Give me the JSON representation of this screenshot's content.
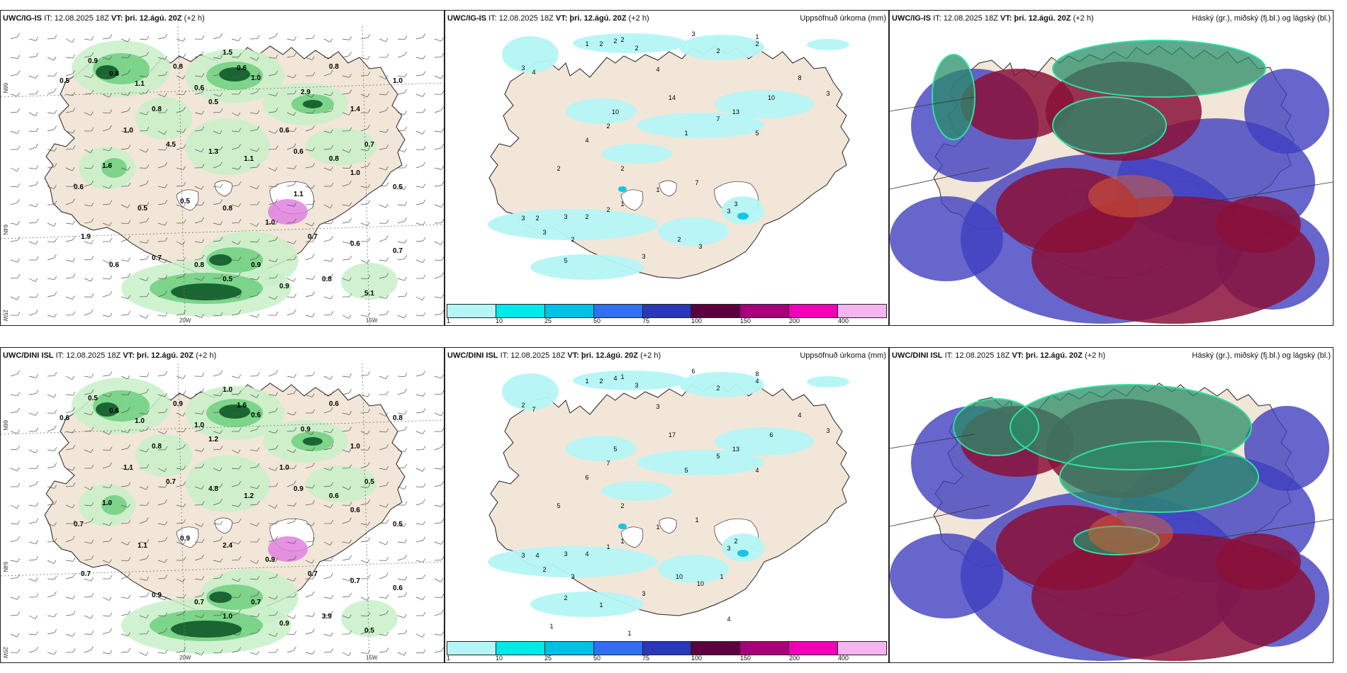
{
  "panels": [
    {
      "model": "UWC/IG-IS",
      "it": "IT: 12.08.2025 18Z",
      "vt_label": "VT:",
      "vt": "þri. 12.ágú. 20Z",
      "lead": "(+2 h)",
      "right": ""
    },
    {
      "model": "UWC/IG-IS",
      "it": "IT: 12.08.2025 18Z",
      "vt_label": "VT:",
      "vt": "þri. 12.ágú. 20Z",
      "lead": "(+2 h)",
      "right": "Uppsöfnuð úrkoma (mm)"
    },
    {
      "model": "UWC/IG-IS",
      "it": "IT: 12.08.2025 18Z",
      "vt_label": "VT:",
      "vt": "þri. 12.ágú. 20Z",
      "lead": "(+2 h)",
      "right": "Háský (gr.), miðský (fj.bl.) og lágský (bl.)"
    },
    {
      "model": "UWC/DINI ISL",
      "it": "IT: 12.08.2025 18Z",
      "vt_label": "VT:",
      "vt": "þri. 12.ágú. 20Z",
      "lead": "(+2 h)",
      "right": ""
    },
    {
      "model": "UWC/DINI ISL",
      "it": "IT: 12.08.2025 18Z",
      "vt_label": "VT:",
      "vt": "þri. 12.ágú. 20Z",
      "lead": "(+2 h)",
      "right": "Uppsöfnuð úrkoma (mm)"
    },
    {
      "model": "UWC/DINI ISL",
      "it": "IT: 12.08.2025 18Z",
      "vt_label": "VT:",
      "vt": "þri. 12.ágú. 20Z",
      "lead": "(+2 h)",
      "right": "Háský (gr.), miðský (fj.bl.) og lágský (bl.)"
    }
  ],
  "axis_labels": {
    "lat66": "66N",
    "lat64": "64N",
    "lon25": "25W",
    "lon20": "20W",
    "lon15": "15W"
  },
  "legend": {
    "labels": [
      "1",
      "10",
      "25",
      "50",
      "75",
      "100",
      "150",
      "200",
      "400",
      ""
    ],
    "colors": [
      "#b4f6f6",
      "#00e8e8",
      "#00c0ea",
      "#2e70f0",
      "#2838b8",
      "#5c0040",
      "#a8007a",
      "#f000b8",
      "#f6b4f0"
    ]
  },
  "colors": {
    "land": "#f2e6d8",
    "precip_light": "#c8f0c8",
    "precip_mid": "#6fcf7f",
    "precip_dark": "#0e5a28",
    "accum_light": "#b4f6f6",
    "cloud_high": "#2a8c68",
    "cloud_mid": "#8a1038",
    "cloud_low": "#4040c0"
  },
  "top_wind_values": [
    "0.9",
    "0.8",
    "1.1",
    "0.8",
    "1.5",
    "0.6",
    "1.0",
    "2.9",
    "1.4",
    "0.7",
    "0.8",
    "0.6",
    "0.5",
    "0.6",
    "0.8",
    "1.0",
    "4.5",
    "1.3",
    "1.1",
    "0.6",
    "1.0",
    "0.5",
    "1.6",
    "0.6",
    "0.5",
    "0.8",
    "1.0",
    "0.7",
    "0.6",
    "0.7",
    "0.8",
    "0.7",
    "0.5",
    "0.9",
    "0.9",
    "0.8",
    "5.1",
    "1.9",
    "0.5",
    "1.0",
    "0.8",
    "0.5",
    "1.1",
    "0.6"
  ],
  "top_accum_values": [
    "2",
    "1",
    "2",
    "2",
    "2",
    "3",
    "4",
    "3",
    "1",
    "2",
    "2",
    "4",
    "10",
    "2",
    "14",
    "13",
    "10",
    "8",
    "3",
    "7",
    "5",
    "1",
    "4",
    "2",
    "2",
    "1",
    "7",
    "3",
    "3",
    "3",
    "2",
    "3",
    "2",
    "2",
    "1",
    "3",
    "2",
    "5",
    "3",
    "2",
    "3"
  ],
  "bottom_wind_values": [
    "0.5",
    "0.6",
    "1.0",
    "0.9",
    "1.0",
    "1.6",
    "0.6",
    "0.9",
    "1.0",
    "0.5",
    "0.6",
    "1.0",
    "1.2",
    "1.0",
    "0.8",
    "1.1",
    "0.7",
    "4.8",
    "1.2",
    "0.9",
    "0.6",
    "0.5",
    "1.0",
    "0.7",
    "0.9",
    "2.4",
    "0.9",
    "0.7",
    "0.7",
    "0.6",
    "0.7",
    "0.9",
    "1.0",
    "0.7",
    "0.9",
    "3.9",
    "0.5",
    "0.7",
    "0.6",
    "0.8",
    "0.6",
    "1.1"
  ],
  "bottom_accum_values": [
    "1",
    "1",
    "2",
    "4",
    "3",
    "2",
    "7",
    "6",
    "8",
    "4",
    "2",
    "3",
    "5",
    "7",
    "17",
    "13",
    "6",
    "4",
    "3",
    "5",
    "4",
    "5",
    "6",
    "5",
    "2",
    "1",
    "1",
    "2",
    "3",
    "3",
    "4",
    "3",
    "4",
    "1",
    "1",
    "2",
    "3",
    "2",
    "3",
    "10",
    "10",
    "1",
    "4",
    "1",
    "1",
    "2",
    "1"
  ]
}
